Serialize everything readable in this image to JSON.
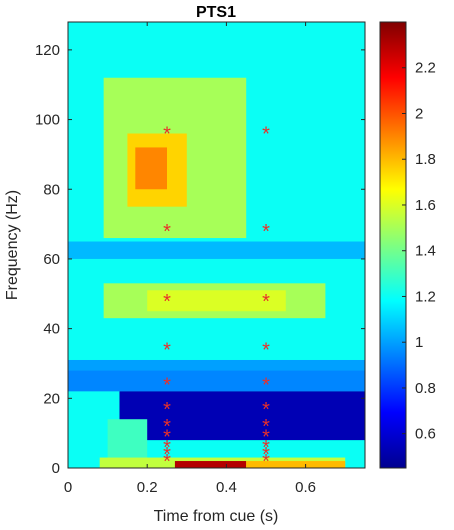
{
  "chart_data": {
    "type": "heatmap",
    "title": "PTS1",
    "xlabel": "Time from cue (s)",
    "ylabel": "Frequency (Hz)",
    "xlim": [
      0,
      0.75
    ],
    "ylim": [
      0,
      128
    ],
    "x_ticks": [
      0,
      0.2,
      0.4,
      0.6
    ],
    "x_tick_labels": [
      "0",
      "0.2",
      "0.4",
      "0.6"
    ],
    "y_ticks": [
      0,
      20,
      40,
      60,
      80,
      100,
      120
    ],
    "y_tick_labels": [
      "0",
      "20",
      "40",
      "60",
      "80",
      "100",
      "120"
    ],
    "colorbar": {
      "range": [
        0.45,
        2.4
      ],
      "ticks": [
        0.6,
        0.8,
        1,
        1.2,
        1.4,
        1.6,
        1.8,
        2,
        2.2
      ],
      "tick_labels": [
        "0.6",
        "0.8",
        "1",
        "1.2",
        "1.4",
        "1.6",
        "1.8",
        "2",
        "2.2"
      ],
      "colormap": "jet"
    },
    "grid": false,
    "significance_marker": "*",
    "marker_color": "#e8302a",
    "significant_points": [
      {
        "time": 0.25,
        "freq": 96
      },
      {
        "time": 0.5,
        "freq": 96
      },
      {
        "time": 0.25,
        "freq": 68
      },
      {
        "time": 0.5,
        "freq": 68
      },
      {
        "time": 0.25,
        "freq": 48
      },
      {
        "time": 0.5,
        "freq": 48
      },
      {
        "time": 0.25,
        "freq": 34
      },
      {
        "time": 0.5,
        "freq": 34
      },
      {
        "time": 0.25,
        "freq": 24
      },
      {
        "time": 0.5,
        "freq": 24
      },
      {
        "time": 0.25,
        "freq": 17
      },
      {
        "time": 0.5,
        "freq": 17
      },
      {
        "time": 0.25,
        "freq": 12
      },
      {
        "time": 0.5,
        "freq": 12
      },
      {
        "time": 0.25,
        "freq": 9
      },
      {
        "time": 0.5,
        "freq": 9
      },
      {
        "time": 0.25,
        "freq": 6
      },
      {
        "time": 0.5,
        "freq": 6
      },
      {
        "time": 0.25,
        "freq": 4
      },
      {
        "time": 0.5,
        "freq": 4
      },
      {
        "time": 0.25,
        "freq": 2
      },
      {
        "time": 0.5,
        "freq": 2
      }
    ],
    "heat_regions": [
      {
        "t0": 0,
        "t1": 0.75,
        "f0": 0,
        "f1": 128,
        "value": 1.2
      },
      {
        "t0": 0.09,
        "t1": 0.45,
        "f0": 66,
        "f1": 112,
        "value": 1.5
      },
      {
        "t0": 0.15,
        "t1": 0.3,
        "f0": 75,
        "f1": 96,
        "value": 1.75
      },
      {
        "t0": 0.17,
        "t1": 0.25,
        "f0": 80,
        "f1": 92,
        "value": 1.9
      },
      {
        "t0": 0,
        "t1": 0.75,
        "f0": 60,
        "f1": 65,
        "value": 1.05
      },
      {
        "t0": 0.09,
        "t1": 0.65,
        "f0": 43,
        "f1": 53,
        "value": 1.5
      },
      {
        "t0": 0.2,
        "t1": 0.55,
        "f0": 45,
        "f1": 51,
        "value": 1.6
      },
      {
        "t0": 0,
        "t1": 0.75,
        "f0": 28,
        "f1": 31,
        "value": 1.0
      },
      {
        "t0": 0,
        "t1": 0.75,
        "f0": 22,
        "f1": 28,
        "value": 0.95
      },
      {
        "t0": 0.13,
        "t1": 0.75,
        "f0": 8,
        "f1": 22,
        "value": 0.55
      },
      {
        "t0": 0.1,
        "t1": 0.2,
        "f0": 3,
        "f1": 14,
        "value": 1.3
      },
      {
        "t0": 0.08,
        "t1": 0.7,
        "f0": 0,
        "f1": 3,
        "value": 1.55
      },
      {
        "t0": 0.27,
        "t1": 0.45,
        "f0": 0,
        "f1": 2,
        "value": 2.3
      },
      {
        "t0": 0.45,
        "t1": 0.7,
        "f0": 0,
        "f1": 2,
        "value": 1.8
      }
    ]
  }
}
